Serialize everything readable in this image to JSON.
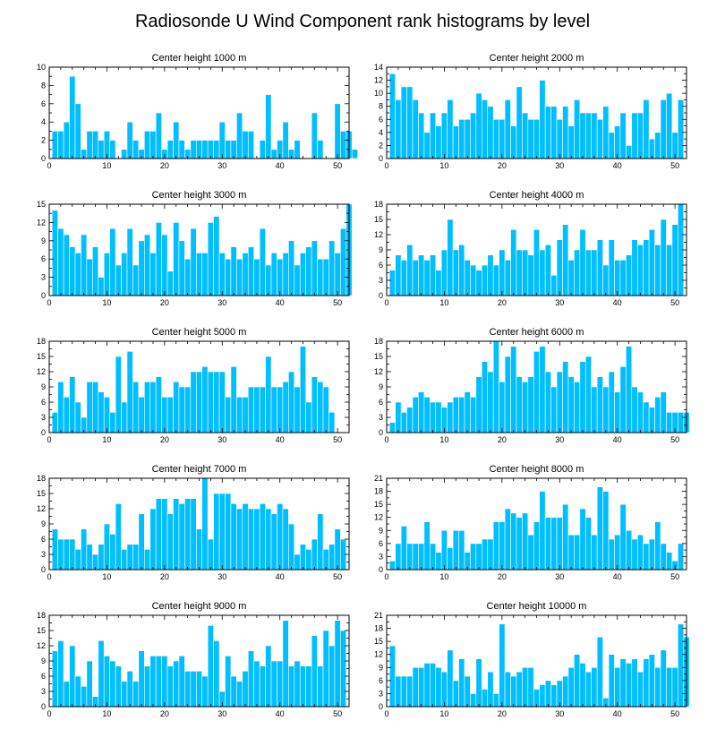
{
  "figure": {
    "title": "Radiosonde U Wind Component rank histograms by level",
    "bar_color": "#00bfff"
  },
  "chart_data": [
    {
      "type": "bar",
      "title": "Center height 1000 m",
      "xlim": [
        0,
        52
      ],
      "ylim": [
        0,
        10
      ],
      "xticks": [
        0,
        10,
        20,
        30,
        40,
        50
      ],
      "yticks": [
        0,
        2,
        4,
        6,
        8,
        10
      ],
      "values": [
        3,
        3,
        4,
        9,
        6,
        1,
        3,
        3,
        2,
        3,
        2,
        0,
        1,
        4,
        2,
        1,
        3,
        3,
        5,
        1,
        2,
        4,
        2,
        1,
        2,
        2,
        2,
        2,
        2,
        4,
        2,
        2,
        5,
        3,
        3,
        0,
        2,
        7,
        1,
        2,
        4,
        1,
        2,
        0,
        0,
        5,
        2,
        0,
        0,
        6,
        3,
        3,
        1
      ]
    },
    {
      "type": "bar",
      "title": "Center height 2000 m",
      "xlim": [
        0,
        52
      ],
      "ylim": [
        0,
        14
      ],
      "xticks": [
        0,
        10,
        20,
        30,
        40,
        50
      ],
      "yticks": [
        0,
        2,
        4,
        6,
        8,
        10,
        12,
        14
      ],
      "values": [
        13,
        9,
        11,
        11,
        9,
        7,
        4,
        7,
        5,
        7,
        9,
        5,
        6,
        6,
        7,
        10,
        9,
        8,
        6,
        6,
        9,
        5,
        11,
        7,
        6,
        6,
        12,
        8,
        8,
        6,
        8,
        5,
        9,
        7,
        7,
        7,
        6,
        8,
        4,
        5,
        7,
        2,
        7,
        7,
        9,
        3,
        4,
        9,
        10,
        4,
        9
      ]
    },
    {
      "type": "bar",
      "title": "Center height 3000 m",
      "xlim": [
        0,
        52
      ],
      "ylim": [
        0,
        15
      ],
      "xticks": [
        0,
        10,
        20,
        30,
        40,
        50
      ],
      "yticks": [
        0,
        3,
        6,
        9,
        12,
        15
      ],
      "values": [
        14,
        11,
        10,
        8,
        7,
        10,
        6,
        8,
        3,
        7,
        11,
        5,
        7,
        11,
        5,
        9,
        10,
        7,
        12,
        10,
        4,
        12,
        9,
        6,
        11,
        7,
        7,
        12,
        13,
        7,
        6,
        8,
        6,
        7,
        8,
        6,
        11,
        5,
        7,
        6,
        7,
        9,
        5,
        7,
        8,
        9,
        6,
        6,
        9,
        7,
        11,
        15
      ]
    },
    {
      "type": "bar",
      "title": "Center height 4000 m",
      "xlim": [
        0,
        52
      ],
      "ylim": [
        0,
        18
      ],
      "xticks": [
        0,
        10,
        20,
        30,
        40,
        50
      ],
      "yticks": [
        0,
        3,
        6,
        9,
        12,
        15,
        18
      ],
      "values": [
        5,
        8,
        7,
        10,
        7,
        8,
        7,
        8,
        5,
        9,
        15,
        9,
        10,
        7,
        6,
        5,
        6,
        8,
        6,
        9,
        7,
        13,
        9,
        9,
        8,
        13,
        9,
        10,
        4,
        11,
        14,
        7,
        9,
        13,
        9,
        9,
        11,
        6,
        11,
        7,
        7,
        8,
        11,
        10,
        11,
        13,
        10,
        15,
        10,
        14,
        18
      ]
    },
    {
      "type": "bar",
      "title": "Center height 5000 m",
      "xlim": [
        0,
        52
      ],
      "ylim": [
        0,
        18
      ],
      "xticks": [
        0,
        10,
        20,
        30,
        40,
        50
      ],
      "yticks": [
        0,
        3,
        6,
        9,
        12,
        15,
        18
      ],
      "values": [
        4,
        10,
        7,
        11,
        6,
        3,
        10,
        10,
        8,
        7,
        4,
        15,
        6,
        16,
        10,
        7,
        10,
        10,
        11,
        7,
        7,
        10,
        9,
        9,
        12,
        12,
        13,
        12,
        12,
        12,
        7,
        13,
        7,
        7,
        9,
        9,
        9,
        15,
        9,
        9,
        10,
        12,
        9,
        17,
        6,
        11,
        10,
        9,
        4
      ]
    },
    {
      "type": "bar",
      "title": "Center height 6000 m",
      "xlim": [
        0,
        52
      ],
      "ylim": [
        0,
        18
      ],
      "xticks": [
        0,
        10,
        20,
        30,
        40,
        50
      ],
      "yticks": [
        0,
        3,
        6,
        9,
        12,
        15,
        18
      ],
      "values": [
        2,
        6,
        4,
        5,
        7,
        8,
        7,
        6,
        6,
        5,
        6,
        7,
        7,
        8,
        7,
        11,
        14,
        12,
        18,
        10,
        15,
        17,
        11,
        10,
        11,
        16,
        17,
        12,
        9,
        12,
        14,
        11,
        10,
        14,
        15,
        9,
        11,
        9,
        12,
        8,
        13,
        17,
        9,
        8,
        6,
        5,
        7,
        8,
        4,
        4,
        4,
        4
      ]
    },
    {
      "type": "bar",
      "title": "Center height 7000 m",
      "xlim": [
        0,
        52
      ],
      "ylim": [
        0,
        18
      ],
      "xticks": [
        0,
        10,
        20,
        30,
        40,
        50
      ],
      "yticks": [
        0,
        3,
        6,
        9,
        12,
        15,
        18
      ],
      "values": [
        8,
        6,
        6,
        6,
        4,
        8,
        5,
        3,
        5,
        9,
        7,
        13,
        4,
        5,
        5,
        11,
        4,
        12,
        14,
        14,
        11,
        14,
        13,
        14,
        14,
        8,
        18,
        6,
        15,
        15,
        15,
        13,
        12,
        13,
        12,
        12,
        13,
        12,
        11,
        13,
        12,
        9,
        3,
        5,
        4,
        6,
        11,
        4,
        5,
        8,
        6
      ]
    },
    {
      "type": "bar",
      "title": "Center height 8000 m",
      "xlim": [
        0,
        52
      ],
      "ylim": [
        0,
        21
      ],
      "xticks": [
        0,
        10,
        20,
        30,
        40,
        50
      ],
      "yticks": [
        0,
        3,
        6,
        9,
        12,
        15,
        18,
        21
      ],
      "values": [
        2,
        6,
        10,
        6,
        6,
        6,
        11,
        6,
        4,
        9,
        5,
        9,
        9,
        4,
        6,
        6,
        7,
        7,
        11,
        11,
        14,
        13,
        12,
        13,
        8,
        11,
        18,
        12,
        12,
        12,
        15,
        8,
        8,
        14,
        12,
        8,
        19,
        18,
        7,
        8,
        15,
        9,
        7,
        8,
        6,
        7,
        11,
        6,
        4,
        2,
        6
      ]
    },
    {
      "type": "bar",
      "title": "Center height 9000 m",
      "xlim": [
        0,
        52
      ],
      "ylim": [
        0,
        18
      ],
      "xticks": [
        0,
        10,
        20,
        30,
        40,
        50
      ],
      "yticks": [
        0,
        3,
        6,
        9,
        12,
        15,
        18
      ],
      "values": [
        11,
        13,
        5,
        12,
        6,
        4,
        9,
        2,
        13,
        10,
        9,
        8,
        5,
        7,
        5,
        11,
        8,
        10,
        10,
        10,
        8,
        9,
        10,
        7,
        7,
        7,
        6,
        16,
        13,
        3,
        10,
        6,
        5,
        7,
        11,
        9,
        8,
        12,
        9,
        9,
        17,
        8,
        9,
        8,
        8,
        14,
        8,
        15,
        12,
        17,
        15
      ]
    },
    {
      "type": "bar",
      "title": "Center height 10000 m",
      "xlim": [
        0,
        52
      ],
      "ylim": [
        0,
        21
      ],
      "xticks": [
        0,
        10,
        20,
        30,
        40,
        50
      ],
      "yticks": [
        0,
        3,
        6,
        9,
        12,
        15,
        18,
        21
      ],
      "values": [
        14,
        7,
        7,
        7,
        9,
        9,
        10,
        10,
        9,
        8,
        13,
        6,
        11,
        7,
        3,
        11,
        4,
        8,
        3,
        19,
        8,
        7,
        8,
        9,
        9,
        4,
        5,
        6,
        5,
        6,
        7,
        9,
        12,
        10,
        8,
        9,
        16,
        2,
        12,
        9,
        11,
        10,
        11,
        8,
        11,
        12,
        9,
        13,
        9,
        9,
        19,
        16
      ]
    }
  ]
}
